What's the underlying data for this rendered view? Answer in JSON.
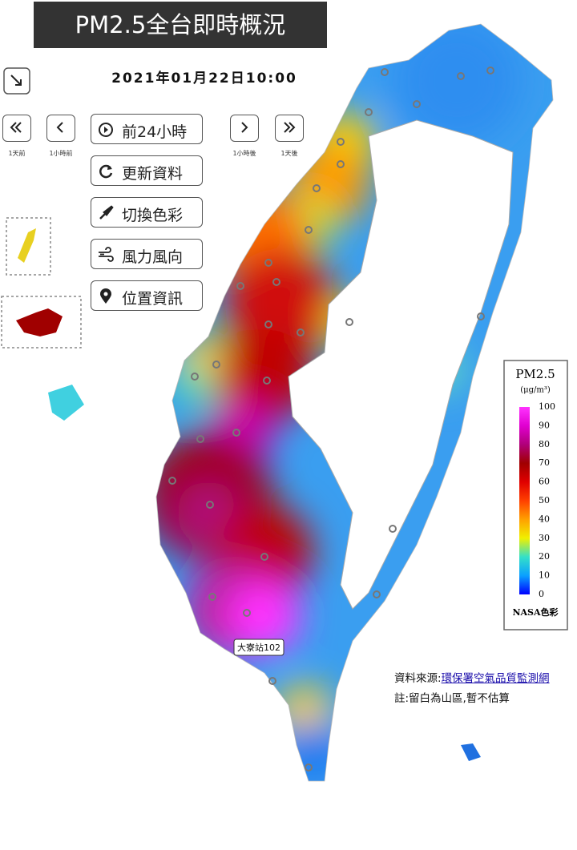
{
  "title": "PM2.5全台即時概況",
  "datetime": "2021年01月22日10:00",
  "nav_labels": [
    "1天前",
    "1小時前",
    "1小時後",
    "1天後"
  ],
  "buttons": [
    "前24小時",
    "更新資料",
    "切換色彩",
    "風力風向",
    "位置資訊"
  ],
  "legend": {
    "title": "PM2.5",
    "unit": "(μg/m³)",
    "ticks": [
      100,
      90,
      80,
      70,
      60,
      50,
      40,
      30,
      20,
      10,
      0
    ],
    "footer": "NASA色彩"
  },
  "station_label": "大寮站102",
  "source": {
    "prefix": "資料來源:",
    "link": "環保署空氣品質監測網"
  },
  "note": "註:留白為山區,暫不估算"
}
